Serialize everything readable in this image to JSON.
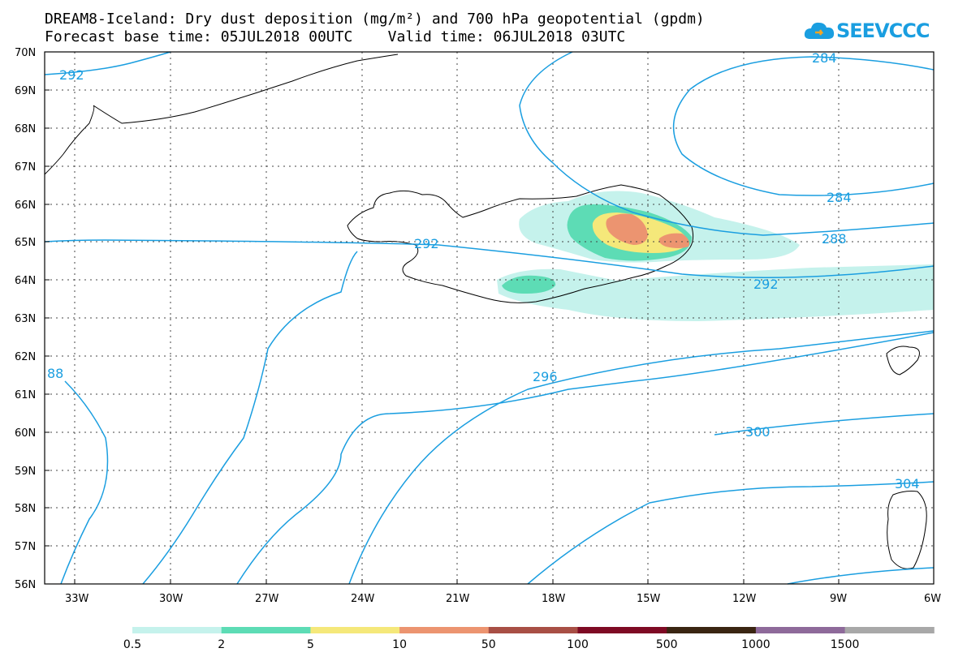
{
  "header": {
    "title_line1": "DREAM8-Iceland: Dry dust deposition (mg/m²) and 700 hPa geopotential (gpdm)",
    "title_line2": "Forecast base time: 05JUL2018 00UTC    Valid time: 06JUL2018 03UTC"
  },
  "logo": {
    "text": "SEEVCCC",
    "color": "#1a9ee0"
  },
  "map": {
    "lat_labels": [
      "70N",
      "69N",
      "68N",
      "67N",
      "66N",
      "65N",
      "64N",
      "63N",
      "62N",
      "61N",
      "60N",
      "59N",
      "58N",
      "57N",
      "56N"
    ],
    "lon_labels": [
      "33W",
      "30W",
      "27W",
      "24W",
      "21W",
      "18W",
      "15W",
      "12W",
      "9W",
      "6W"
    ],
    "contour_labels": [
      "292",
      "284",
      "284",
      "288",
      "292",
      "292",
      "296",
      "300",
      "304",
      "88"
    ]
  },
  "colorbar": {
    "labels": [
      "0.5",
      "2",
      "5",
      "10",
      "50",
      "100",
      "500",
      "1000",
      "1500"
    ],
    "colors": [
      "#c5f2ec",
      "#5ddcb5",
      "#f5e87a",
      "#ec9470",
      "#a84f45",
      "#7e0a24",
      "#3a2512",
      "#8e6a9a",
      "#a8a8a8"
    ]
  }
}
